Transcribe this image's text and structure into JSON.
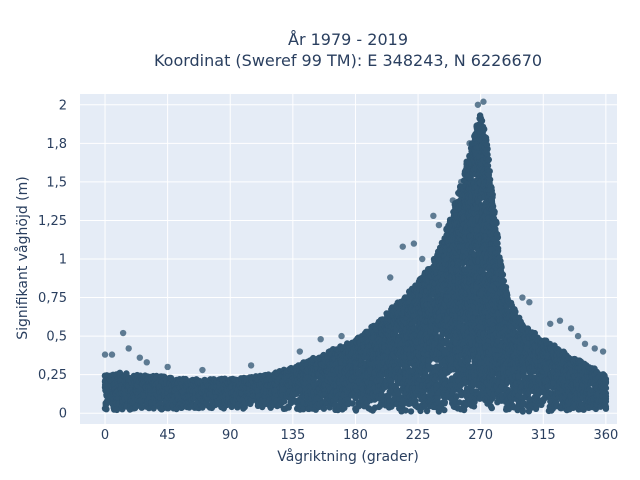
{
  "chart_data": {
    "type": "scatter",
    "title_line1": "År 1979 - 2019",
    "title_line2": "Koordinat (Sweref 99 TM): E 348243, N 6226670",
    "xlabel": "Vågriktning (grader)",
    "ylabel": "Signifikant våghöjd (m)",
    "xlim": [
      -18,
      368
    ],
    "ylim": [
      -0.07,
      2.07
    ],
    "x_ticks": [
      0,
      45,
      90,
      135,
      180,
      225,
      270,
      315,
      360
    ],
    "x_tick_labels": [
      "0",
      "45",
      "90",
      "135",
      "180",
      "225",
      "270",
      "315",
      "360"
    ],
    "y_ticks": [
      0,
      0.25,
      0.5,
      0.75,
      1,
      1.25,
      1.5,
      1.75,
      2
    ],
    "y_tick_labels": [
      "0",
      "0,25",
      "0,5",
      "0,75",
      "1",
      "1,25",
      "1,5",
      "1,8",
      "2"
    ],
    "grid": true,
    "plot_background": "#e5ecf6",
    "marker_color": "#2f5470",
    "envelope": {
      "x": [
        0,
        10,
        20,
        40,
        60,
        80,
        100,
        120,
        135,
        150,
        165,
        180,
        195,
        210,
        225,
        240,
        250,
        258,
        265,
        270,
        275,
        280,
        285,
        290,
        300,
        315,
        330,
        345,
        360
      ],
      "upper": [
        0.25,
        0.27,
        0.25,
        0.24,
        0.22,
        0.22,
        0.23,
        0.26,
        0.3,
        0.36,
        0.42,
        0.48,
        0.58,
        0.72,
        0.85,
        1.05,
        1.3,
        1.55,
        1.8,
        1.95,
        1.75,
        1.3,
        0.95,
        0.75,
        0.58,
        0.48,
        0.4,
        0.32,
        0.25
      ],
      "lower": [
        0.02,
        0.02,
        0.02,
        0.02,
        0.03,
        0.03,
        0.03,
        0.03,
        0.02,
        0.02,
        0.02,
        0.01,
        0.01,
        0.01,
        0.01,
        0.01,
        0.01,
        0.01,
        0.01,
        0.01,
        0.01,
        0.01,
        0.01,
        0.01,
        0.01,
        0.01,
        0.01,
        0.01,
        0.02
      ]
    },
    "outliers": [
      {
        "x": 0,
        "y": 0.38
      },
      {
        "x": 5,
        "y": 0.38
      },
      {
        "x": 13,
        "y": 0.52
      },
      {
        "x": 17,
        "y": 0.42
      },
      {
        "x": 25,
        "y": 0.36
      },
      {
        "x": 30,
        "y": 0.33
      },
      {
        "x": 45,
        "y": 0.3
      },
      {
        "x": 70,
        "y": 0.28
      },
      {
        "x": 105,
        "y": 0.31
      },
      {
        "x": 140,
        "y": 0.4
      },
      {
        "x": 155,
        "y": 0.48
      },
      {
        "x": 170,
        "y": 0.5
      },
      {
        "x": 205,
        "y": 0.88
      },
      {
        "x": 214,
        "y": 1.08
      },
      {
        "x": 222,
        "y": 1.1
      },
      {
        "x": 228,
        "y": 1.0
      },
      {
        "x": 236,
        "y": 1.28
      },
      {
        "x": 240,
        "y": 1.22
      },
      {
        "x": 250,
        "y": 1.38
      },
      {
        "x": 256,
        "y": 1.5
      },
      {
        "x": 262,
        "y": 1.75
      },
      {
        "x": 268,
        "y": 2.0
      },
      {
        "x": 272,
        "y": 2.02
      },
      {
        "x": 300,
        "y": 0.75
      },
      {
        "x": 305,
        "y": 0.72
      },
      {
        "x": 320,
        "y": 0.58
      },
      {
        "x": 327,
        "y": 0.6
      },
      {
        "x": 335,
        "y": 0.55
      },
      {
        "x": 340,
        "y": 0.5
      },
      {
        "x": 345,
        "y": 0.45
      },
      {
        "x": 352,
        "y": 0.42
      },
      {
        "x": 358,
        "y": 0.4
      }
    ]
  }
}
